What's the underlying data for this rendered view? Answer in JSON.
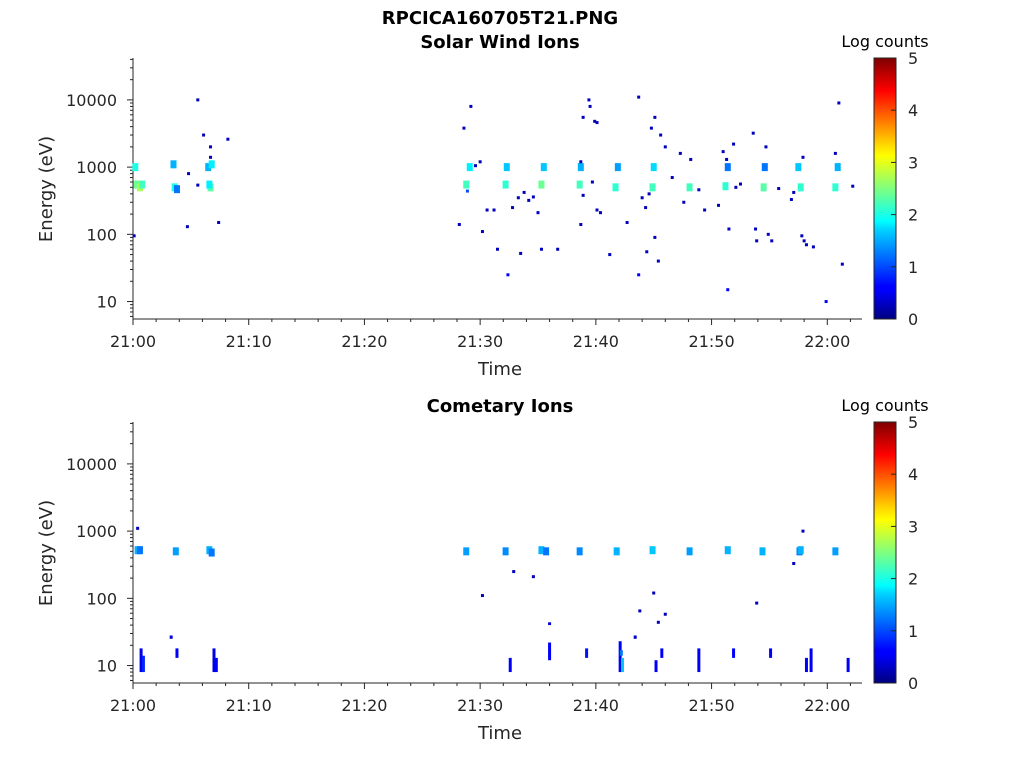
{
  "figure": {
    "title": "RPCICA160705T21.PNG"
  },
  "colormap": "jet",
  "chart_data": [
    {
      "type": "heatmap",
      "title": "Solar Wind Ions",
      "xlabel": "Time",
      "ylabel": "Energy (eV)",
      "xticks": [
        "21:00",
        "21:10",
        "21:20",
        "21:30",
        "21:40",
        "21:50",
        "22:00"
      ],
      "yticks": [
        "10",
        "100",
        "1000",
        "10000"
      ],
      "yscale": "log",
      "xlim": [
        "21:00",
        "22:03"
      ],
      "ylim": [
        5.5,
        42000
      ],
      "colorbar": {
        "label": "Log counts",
        "ticks": [
          "0",
          "1",
          "2",
          "3",
          "4",
          "5"
        ],
        "range": [
          0,
          5
        ]
      },
      "points": [
        {
          "t": 0.2,
          "e": 1000,
          "v": 2.0
        },
        {
          "t": 0.3,
          "e": 550,
          "v": 2.4
        },
        {
          "t": 0.6,
          "e": 500,
          "v": 2.7
        },
        {
          "t": 0.8,
          "e": 550,
          "v": 2.2
        },
        {
          "t": 0.1,
          "e": 95,
          "v": 0.3
        },
        {
          "t": 3.5,
          "e": 1100,
          "v": 1.5
        },
        {
          "t": 3.6,
          "e": 500,
          "v": 2.0
        },
        {
          "t": 3.8,
          "e": 470,
          "v": 1.2
        },
        {
          "t": 4.8,
          "e": 800,
          "v": 0.3
        },
        {
          "t": 4.7,
          "e": 130,
          "v": 0.3
        },
        {
          "t": 5.6,
          "e": 10000,
          "v": 0.3
        },
        {
          "t": 5.6,
          "e": 540,
          "v": 0.3
        },
        {
          "t": 6.1,
          "e": 3000,
          "v": 0.3
        },
        {
          "t": 6.7,
          "e": 2000,
          "v": 0.3
        },
        {
          "t": 6.5,
          "e": 1000,
          "v": 1.5
        },
        {
          "t": 6.8,
          "e": 1100,
          "v": 1.8
        },
        {
          "t": 6.7,
          "e": 500,
          "v": 2.3
        },
        {
          "t": 6.6,
          "e": 550,
          "v": 1.8
        },
        {
          "t": 7.4,
          "e": 150,
          "v": 0.3
        },
        {
          "t": 8.2,
          "e": 2600,
          "v": 0.3
        },
        {
          "t": 6.7,
          "e": 1400,
          "v": 0.3
        },
        {
          "t": 28.2,
          "e": 140,
          "v": 0.3
        },
        {
          "t": 28.6,
          "e": 3800,
          "v": 0.3
        },
        {
          "t": 28.8,
          "e": 550,
          "v": 2.2
        },
        {
          "t": 28.9,
          "e": 440,
          "v": 1.0
        },
        {
          "t": 29.1,
          "e": 1000,
          "v": 1.8
        },
        {
          "t": 29.2,
          "e": 8000,
          "v": 0.3
        },
        {
          "t": 29.6,
          "e": 1050,
          "v": 0.3
        },
        {
          "t": 30.0,
          "e": 1200,
          "v": 0.3
        },
        {
          "t": 30.2,
          "e": 110,
          "v": 0.3
        },
        {
          "t": 30.6,
          "e": 230,
          "v": 0.3
        },
        {
          "t": 31.2,
          "e": 230,
          "v": 0.3
        },
        {
          "t": 31.5,
          "e": 60,
          "v": 0.3
        },
        {
          "t": 32.2,
          "e": 550,
          "v": 2.1
        },
        {
          "t": 32.3,
          "e": 1000,
          "v": 1.6
        },
        {
          "t": 32.4,
          "e": 25,
          "v": 0.6
        },
        {
          "t": 32.8,
          "e": 250,
          "v": 0.3
        },
        {
          "t": 33.3,
          "e": 350,
          "v": 0.3
        },
        {
          "t": 33.5,
          "e": 52,
          "v": 0.3
        },
        {
          "t": 33.8,
          "e": 420,
          "v": 0.3
        },
        {
          "t": 34.2,
          "e": 320,
          "v": 0.3
        },
        {
          "t": 34.6,
          "e": 360,
          "v": 0.3
        },
        {
          "t": 35.0,
          "e": 210,
          "v": 0.3
        },
        {
          "t": 35.3,
          "e": 550,
          "v": 2.4
        },
        {
          "t": 35.5,
          "e": 1000,
          "v": 1.6
        },
        {
          "t": 35.3,
          "e": 60,
          "v": 0.3
        },
        {
          "t": 36.7,
          "e": 60,
          "v": 0.3
        },
        {
          "t": 38.6,
          "e": 550,
          "v": 2.2
        },
        {
          "t": 38.7,
          "e": 1000,
          "v": 1.5
        },
        {
          "t": 38.7,
          "e": 1200,
          "v": 0.3
        },
        {
          "t": 38.9,
          "e": 5500,
          "v": 0.3
        },
        {
          "t": 38.7,
          "e": 140,
          "v": 0.3
        },
        {
          "t": 38.9,
          "e": 380,
          "v": 0.3
        },
        {
          "t": 39.4,
          "e": 10000,
          "v": 0.3
        },
        {
          "t": 39.5,
          "e": 8000,
          "v": 0.3
        },
        {
          "t": 39.7,
          "e": 600,
          "v": 0.3
        },
        {
          "t": 39.9,
          "e": 4800,
          "v": 0.3
        },
        {
          "t": 40.1,
          "e": 4600,
          "v": 0.3
        },
        {
          "t": 40.1,
          "e": 230,
          "v": 0.3
        },
        {
          "t": 40.4,
          "e": 210,
          "v": 0.3
        },
        {
          "t": 41.2,
          "e": 50,
          "v": 0.3
        },
        {
          "t": 41.7,
          "e": 500,
          "v": 2.1
        },
        {
          "t": 41.9,
          "e": 1000,
          "v": 1.4
        },
        {
          "t": 42.7,
          "e": 150,
          "v": 0.3
        },
        {
          "t": 43.7,
          "e": 11000,
          "v": 0.3
        },
        {
          "t": 43.7,
          "e": 25,
          "v": 0.6
        },
        {
          "t": 44.0,
          "e": 350,
          "v": 0.3
        },
        {
          "t": 44.3,
          "e": 250,
          "v": 0.3
        },
        {
          "t": 44.4,
          "e": 55,
          "v": 0.3
        },
        {
          "t": 44.6,
          "e": 400,
          "v": 0.3
        },
        {
          "t": 44.9,
          "e": 500,
          "v": 2.2
        },
        {
          "t": 45.0,
          "e": 1000,
          "v": 1.7
        },
        {
          "t": 44.8,
          "e": 3800,
          "v": 0.3
        },
        {
          "t": 45.1,
          "e": 5500,
          "v": 0.3
        },
        {
          "t": 45.1,
          "e": 90,
          "v": 0.3
        },
        {
          "t": 45.4,
          "e": 40,
          "v": 0.3
        },
        {
          "t": 45.6,
          "e": 3000,
          "v": 0.3
        },
        {
          "t": 46.0,
          "e": 2000,
          "v": 0.3
        },
        {
          "t": 46.6,
          "e": 700,
          "v": 0.3
        },
        {
          "t": 47.3,
          "e": 1600,
          "v": 0.3
        },
        {
          "t": 47.6,
          "e": 300,
          "v": 0.3
        },
        {
          "t": 48.1,
          "e": 500,
          "v": 2.2
        },
        {
          "t": 48.2,
          "e": 1300,
          "v": 0.3
        },
        {
          "t": 48.9,
          "e": 460,
          "v": 0.3
        },
        {
          "t": 49.4,
          "e": 230,
          "v": 0.3
        },
        {
          "t": 50.6,
          "e": 270,
          "v": 0.3
        },
        {
          "t": 51.2,
          "e": 520,
          "v": 2.1
        },
        {
          "t": 51.0,
          "e": 1700,
          "v": 0.3
        },
        {
          "t": 51.3,
          "e": 1300,
          "v": 0.3
        },
        {
          "t": 51.4,
          "e": 1000,
          "v": 1.2
        },
        {
          "t": 51.5,
          "e": 120,
          "v": 0.3
        },
        {
          "t": 51.4,
          "e": 15,
          "v": 0.6
        },
        {
          "t": 51.9,
          "e": 2200,
          "v": 0.3
        },
        {
          "t": 52.1,
          "e": 500,
          "v": 0.3
        },
        {
          "t": 52.5,
          "e": 560,
          "v": 0.3
        },
        {
          "t": 53.6,
          "e": 3200,
          "v": 0.3
        },
        {
          "t": 53.8,
          "e": 120,
          "v": 0.3
        },
        {
          "t": 53.9,
          "e": 80,
          "v": 0.3
        },
        {
          "t": 54.5,
          "e": 500,
          "v": 2.3
        },
        {
          "t": 54.6,
          "e": 1000,
          "v": 1.2
        },
        {
          "t": 54.7,
          "e": 2000,
          "v": 0.3
        },
        {
          "t": 54.9,
          "e": 100,
          "v": 0.3
        },
        {
          "t": 55.2,
          "e": 80,
          "v": 0.3
        },
        {
          "t": 55.8,
          "e": 480,
          "v": 0.3
        },
        {
          "t": 56.9,
          "e": 330,
          "v": 0.3
        },
        {
          "t": 57.1,
          "e": 420,
          "v": 0.3
        },
        {
          "t": 57.5,
          "e": 1000,
          "v": 1.6
        },
        {
          "t": 57.7,
          "e": 500,
          "v": 2.1
        },
        {
          "t": 57.9,
          "e": 1400,
          "v": 0.3
        },
        {
          "t": 57.8,
          "e": 95,
          "v": 0.3
        },
        {
          "t": 58.0,
          "e": 80,
          "v": 0.3
        },
        {
          "t": 58.2,
          "e": 70,
          "v": 0.3
        },
        {
          "t": 58.8,
          "e": 65,
          "v": 0.3
        },
        {
          "t": 59.9,
          "e": 10,
          "v": 0.6
        },
        {
          "t": 60.7,
          "e": 500,
          "v": 2.1
        },
        {
          "t": 60.9,
          "e": 1000,
          "v": 1.5
        },
        {
          "t": 60.7,
          "e": 1600,
          "v": 0.3
        },
        {
          "t": 61.0,
          "e": 9000,
          "v": 0.3
        },
        {
          "t": 61.3,
          "e": 36,
          "v": 0.3
        },
        {
          "t": 62.2,
          "e": 520,
          "v": 0.3
        }
      ]
    },
    {
      "type": "heatmap",
      "title": "Cometary Ions",
      "xlabel": "Time",
      "ylabel": "Energy (eV)",
      "xticks": [
        "21:00",
        "21:10",
        "21:20",
        "21:30",
        "21:40",
        "21:50",
        "22:00"
      ],
      "yticks": [
        "10",
        "100",
        "1000",
        "10000"
      ],
      "yscale": "log",
      "xlim": [
        "21:00",
        "22:03"
      ],
      "ylim": [
        5.5,
        42000
      ],
      "colorbar": {
        "label": "Log counts",
        "ticks": [
          "0",
          "1",
          "2",
          "3",
          "4",
          "5"
        ],
        "range": [
          0,
          5
        ]
      },
      "points": [
        {
          "t": 0.4,
          "e": 520,
          "v": 1.5
        },
        {
          "t": 0.6,
          "e": 520,
          "v": 1.2
        },
        {
          "t": 0.4,
          "e": 1100,
          "v": 0.3
        },
        {
          "t": 3.7,
          "e": 500,
          "v": 1.4
        },
        {
          "t": 6.6,
          "e": 520,
          "v": 1.5
        },
        {
          "t": 6.8,
          "e": 480,
          "v": 1.2
        },
        {
          "t": 28.8,
          "e": 500,
          "v": 1.4
        },
        {
          "t": 30.2,
          "e": 110,
          "v": 0.3
        },
        {
          "t": 32.2,
          "e": 500,
          "v": 1.3
        },
        {
          "t": 32.9,
          "e": 250,
          "v": 0.3
        },
        {
          "t": 34.6,
          "e": 210,
          "v": 0.3
        },
        {
          "t": 35.3,
          "e": 520,
          "v": 1.5
        },
        {
          "t": 35.7,
          "e": 500,
          "v": 1.2
        },
        {
          "t": 38.6,
          "e": 500,
          "v": 1.3
        },
        {
          "t": 41.8,
          "e": 500,
          "v": 1.5
        },
        {
          "t": 43.8,
          "e": 65,
          "v": 0.3
        },
        {
          "t": 44.9,
          "e": 520,
          "v": 1.6
        },
        {
          "t": 45.0,
          "e": 120,
          "v": 0.3
        },
        {
          "t": 45.4,
          "e": 44,
          "v": 0.3
        },
        {
          "t": 46.0,
          "e": 58,
          "v": 0.3
        },
        {
          "t": 48.1,
          "e": 500,
          "v": 1.4
        },
        {
          "t": 51.4,
          "e": 520,
          "v": 1.5
        },
        {
          "t": 53.9,
          "e": 85,
          "v": 0.3
        },
        {
          "t": 54.4,
          "e": 500,
          "v": 1.5
        },
        {
          "t": 57.1,
          "e": 330,
          "v": 0.3
        },
        {
          "t": 57.6,
          "e": 500,
          "v": 1.2
        },
        {
          "t": 57.7,
          "e": 520,
          "v": 1.5
        },
        {
          "t": 57.9,
          "e": 1000,
          "v": 0.3
        },
        {
          "t": 60.7,
          "e": 500,
          "v": 1.4
        }
      ],
      "bars": [
        {
          "t": 0.7,
          "e_low": 8,
          "e_high": 18,
          "v": 0.5
        },
        {
          "t": 0.9,
          "e_low": 8,
          "e_high": 14,
          "v": 0.8
        },
        {
          "t": 3.3,
          "e_low": 25,
          "e_high": 28,
          "v": 0.5
        },
        {
          "t": 3.8,
          "e_low": 13,
          "e_high": 18,
          "v": 0.6
        },
        {
          "t": 7.0,
          "e_low": 8,
          "e_high": 18,
          "v": 0.5
        },
        {
          "t": 7.2,
          "e_low": 8,
          "e_high": 13,
          "v": 0.6
        },
        {
          "t": 32.6,
          "e_low": 8,
          "e_high": 13,
          "v": 0.6
        },
        {
          "t": 36.0,
          "e_low": 12,
          "e_high": 22,
          "v": 0.6
        },
        {
          "t": 36.0,
          "e_low": 40,
          "e_high": 44,
          "v": 0.4
        },
        {
          "t": 39.2,
          "e_low": 13,
          "e_high": 18,
          "v": 0.7
        },
        {
          "t": 42.1,
          "e_low": 8,
          "e_high": 23,
          "v": 0.6
        },
        {
          "t": 42.3,
          "e_low": 8,
          "e_high": 13,
          "v": 1.6
        },
        {
          "t": 42.2,
          "e_low": 14,
          "e_high": 17,
          "v": 1.2
        },
        {
          "t": 43.4,
          "e_low": 25,
          "e_high": 28,
          "v": 0.4
        },
        {
          "t": 45.2,
          "e_low": 8,
          "e_high": 12,
          "v": 0.6
        },
        {
          "t": 45.7,
          "e_low": 13,
          "e_high": 18,
          "v": 0.6
        },
        {
          "t": 48.9,
          "e_low": 8,
          "e_high": 18,
          "v": 0.6
        },
        {
          "t": 51.9,
          "e_low": 13,
          "e_high": 18,
          "v": 0.6
        },
        {
          "t": 55.1,
          "e_low": 13,
          "e_high": 18,
          "v": 0.6
        },
        {
          "t": 58.2,
          "e_low": 8,
          "e_high": 13,
          "v": 0.6
        },
        {
          "t": 58.6,
          "e_low": 8,
          "e_high": 18,
          "v": 0.6
        },
        {
          "t": 61.8,
          "e_low": 8,
          "e_high": 13,
          "v": 0.6
        }
      ]
    }
  ]
}
